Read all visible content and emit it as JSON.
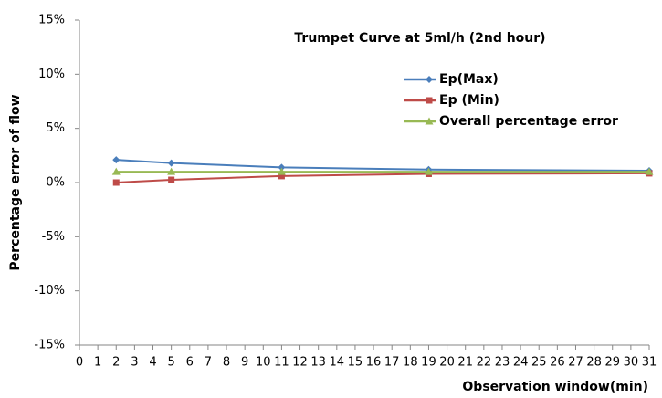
{
  "chart_data": {
    "type": "line",
    "title": "Trumpet Curve at 5ml/h (2nd hour)",
    "x_label": "Observation window(min)",
    "y_label": "Percentage error of flow",
    "x": [
      2,
      5,
      11,
      19,
      31
    ],
    "series": [
      {
        "name": "Ep(Max)",
        "color": "#4a7ebb",
        "marker": "diamond",
        "values": [
          2.1,
          1.8,
          1.4,
          1.2,
          1.1
        ]
      },
      {
        "name": "Ep (Min)",
        "color": "#be4b48",
        "marker": "square",
        "values": [
          0.0,
          0.25,
          0.6,
          0.8,
          0.85
        ]
      },
      {
        "name": "Overall percentage error",
        "color": "#98b954",
        "marker": "triangle",
        "values": [
          1.0,
          1.0,
          1.0,
          1.0,
          1.0
        ]
      }
    ],
    "xlim": [
      0,
      31
    ],
    "xticks": [
      0,
      1,
      2,
      3,
      4,
      5,
      6,
      7,
      8,
      9,
      10,
      11,
      12,
      13,
      14,
      15,
      16,
      17,
      18,
      19,
      20,
      21,
      22,
      23,
      24,
      25,
      26,
      27,
      28,
      29,
      30,
      31
    ],
    "ylim": [
      -15,
      15
    ],
    "yticks": [
      {
        "value": -15,
        "label": "-15%"
      },
      {
        "value": -10,
        "label": "-10%"
      },
      {
        "value": -5,
        "label": "-5%"
      },
      {
        "value": 0,
        "label": "0%"
      },
      {
        "value": 5,
        "label": "5%"
      },
      {
        "value": 10,
        "label": "10%"
      },
      {
        "value": 15,
        "label": "15%"
      }
    ],
    "grid": false,
    "legend": "upper right"
  }
}
